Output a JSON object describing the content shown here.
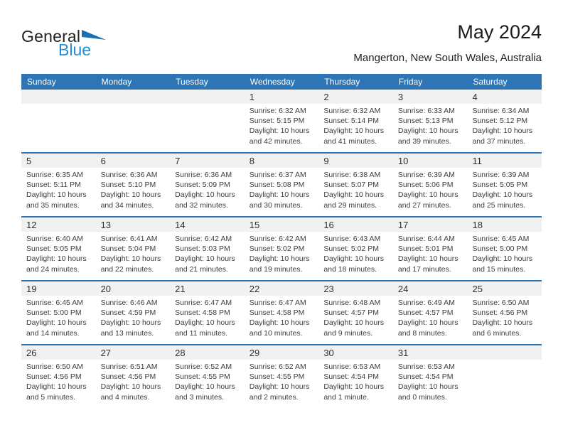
{
  "logo": {
    "part1": "General",
    "part2": "Blue",
    "triangle_color": "#1a6fb5"
  },
  "header": {
    "title": "May 2024",
    "subtitle": "Mangerton, New South Wales, Australia"
  },
  "colors": {
    "header_bar": "#2e75b6",
    "row_divider": "#2e75b6",
    "day_strip": "#f1f1f1",
    "weekday_text": "#ffffff",
    "logo_blue": "#1e8fd5"
  },
  "calendar": {
    "weekdays": [
      "Sunday",
      "Monday",
      "Tuesday",
      "Wednesday",
      "Thursday",
      "Friday",
      "Saturday"
    ],
    "weeks": [
      [
        null,
        null,
        null,
        {
          "day": "1",
          "lines": [
            "Sunrise: 6:32 AM",
            "Sunset: 5:15 PM",
            "Daylight: 10 hours",
            "and 42 minutes."
          ]
        },
        {
          "day": "2",
          "lines": [
            "Sunrise: 6:32 AM",
            "Sunset: 5:14 PM",
            "Daylight: 10 hours",
            "and 41 minutes."
          ]
        },
        {
          "day": "3",
          "lines": [
            "Sunrise: 6:33 AM",
            "Sunset: 5:13 PM",
            "Daylight: 10 hours",
            "and 39 minutes."
          ]
        },
        {
          "day": "4",
          "lines": [
            "Sunrise: 6:34 AM",
            "Sunset: 5:12 PM",
            "Daylight: 10 hours",
            "and 37 minutes."
          ]
        }
      ],
      [
        {
          "day": "5",
          "lines": [
            "Sunrise: 6:35 AM",
            "Sunset: 5:11 PM",
            "Daylight: 10 hours",
            "and 35 minutes."
          ]
        },
        {
          "day": "6",
          "lines": [
            "Sunrise: 6:36 AM",
            "Sunset: 5:10 PM",
            "Daylight: 10 hours",
            "and 34 minutes."
          ]
        },
        {
          "day": "7",
          "lines": [
            "Sunrise: 6:36 AM",
            "Sunset: 5:09 PM",
            "Daylight: 10 hours",
            "and 32 minutes."
          ]
        },
        {
          "day": "8",
          "lines": [
            "Sunrise: 6:37 AM",
            "Sunset: 5:08 PM",
            "Daylight: 10 hours",
            "and 30 minutes."
          ]
        },
        {
          "day": "9",
          "lines": [
            "Sunrise: 6:38 AM",
            "Sunset: 5:07 PM",
            "Daylight: 10 hours",
            "and 29 minutes."
          ]
        },
        {
          "day": "10",
          "lines": [
            "Sunrise: 6:39 AM",
            "Sunset: 5:06 PM",
            "Daylight: 10 hours",
            "and 27 minutes."
          ]
        },
        {
          "day": "11",
          "lines": [
            "Sunrise: 6:39 AM",
            "Sunset: 5:05 PM",
            "Daylight: 10 hours",
            "and 25 minutes."
          ]
        }
      ],
      [
        {
          "day": "12",
          "lines": [
            "Sunrise: 6:40 AM",
            "Sunset: 5:05 PM",
            "Daylight: 10 hours",
            "and 24 minutes."
          ]
        },
        {
          "day": "13",
          "lines": [
            "Sunrise: 6:41 AM",
            "Sunset: 5:04 PM",
            "Daylight: 10 hours",
            "and 22 minutes."
          ]
        },
        {
          "day": "14",
          "lines": [
            "Sunrise: 6:42 AM",
            "Sunset: 5:03 PM",
            "Daylight: 10 hours",
            "and 21 minutes."
          ]
        },
        {
          "day": "15",
          "lines": [
            "Sunrise: 6:42 AM",
            "Sunset: 5:02 PM",
            "Daylight: 10 hours",
            "and 19 minutes."
          ]
        },
        {
          "day": "16",
          "lines": [
            "Sunrise: 6:43 AM",
            "Sunset: 5:02 PM",
            "Daylight: 10 hours",
            "and 18 minutes."
          ]
        },
        {
          "day": "17",
          "lines": [
            "Sunrise: 6:44 AM",
            "Sunset: 5:01 PM",
            "Daylight: 10 hours",
            "and 17 minutes."
          ]
        },
        {
          "day": "18",
          "lines": [
            "Sunrise: 6:45 AM",
            "Sunset: 5:00 PM",
            "Daylight: 10 hours",
            "and 15 minutes."
          ]
        }
      ],
      [
        {
          "day": "19",
          "lines": [
            "Sunrise: 6:45 AM",
            "Sunset: 5:00 PM",
            "Daylight: 10 hours",
            "and 14 minutes."
          ]
        },
        {
          "day": "20",
          "lines": [
            "Sunrise: 6:46 AM",
            "Sunset: 4:59 PM",
            "Daylight: 10 hours",
            "and 13 minutes."
          ]
        },
        {
          "day": "21",
          "lines": [
            "Sunrise: 6:47 AM",
            "Sunset: 4:58 PM",
            "Daylight: 10 hours",
            "and 11 minutes."
          ]
        },
        {
          "day": "22",
          "lines": [
            "Sunrise: 6:47 AM",
            "Sunset: 4:58 PM",
            "Daylight: 10 hours",
            "and 10 minutes."
          ]
        },
        {
          "day": "23",
          "lines": [
            "Sunrise: 6:48 AM",
            "Sunset: 4:57 PM",
            "Daylight: 10 hours",
            "and 9 minutes."
          ]
        },
        {
          "day": "24",
          "lines": [
            "Sunrise: 6:49 AM",
            "Sunset: 4:57 PM",
            "Daylight: 10 hours",
            "and 8 minutes."
          ]
        },
        {
          "day": "25",
          "lines": [
            "Sunrise: 6:50 AM",
            "Sunset: 4:56 PM",
            "Daylight: 10 hours",
            "and 6 minutes."
          ]
        }
      ],
      [
        {
          "day": "26",
          "lines": [
            "Sunrise: 6:50 AM",
            "Sunset: 4:56 PM",
            "Daylight: 10 hours",
            "and 5 minutes."
          ]
        },
        {
          "day": "27",
          "lines": [
            "Sunrise: 6:51 AM",
            "Sunset: 4:56 PM",
            "Daylight: 10 hours",
            "and 4 minutes."
          ]
        },
        {
          "day": "28",
          "lines": [
            "Sunrise: 6:52 AM",
            "Sunset: 4:55 PM",
            "Daylight: 10 hours",
            "and 3 minutes."
          ]
        },
        {
          "day": "29",
          "lines": [
            "Sunrise: 6:52 AM",
            "Sunset: 4:55 PM",
            "Daylight: 10 hours",
            "and 2 minutes."
          ]
        },
        {
          "day": "30",
          "lines": [
            "Sunrise: 6:53 AM",
            "Sunset: 4:54 PM",
            "Daylight: 10 hours",
            "and 1 minute."
          ]
        },
        {
          "day": "31",
          "lines": [
            "Sunrise: 6:53 AM",
            "Sunset: 4:54 PM",
            "Daylight: 10 hours",
            "and 0 minutes."
          ]
        },
        null
      ]
    ]
  }
}
